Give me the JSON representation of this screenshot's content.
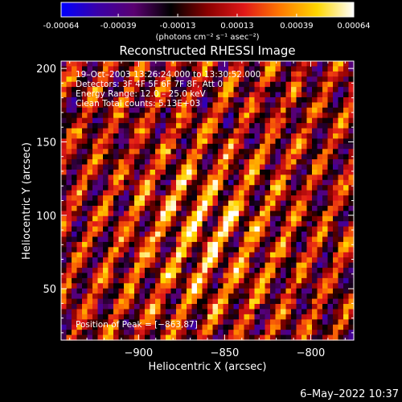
{
  "colorbar": {
    "tick_labels": [
      "-0.00064",
      "-0.00039",
      "-0.00013",
      "0.00013",
      "0.00039",
      "0.00064"
    ],
    "tick_values": [
      -0.00064,
      -0.00039,
      -0.00013,
      0.00013,
      0.00039,
      0.00064
    ],
    "range": [
      -0.00064,
      0.00064
    ],
    "unit_label": "(photons cm⁻² s⁻¹ asec⁻²)",
    "colormap": [
      "#0000ff",
      "#3a00a8",
      "#5a0070",
      "#000000",
      "#8a0000",
      "#e01818",
      "#ff7a00",
      "#ffd700",
      "#ffffff"
    ]
  },
  "chart_data": {
    "type": "heatmap",
    "title": "Reconstructed RHESSI Image",
    "xlabel": "Heliocentric X (arcsec)",
    "ylabel": "Heliocentric Y (arcsec)",
    "xlim": [
      -945,
      -775
    ],
    "ylim": [
      15,
      205
    ],
    "x_ticks": [
      -900,
      -850,
      -800
    ],
    "x_tick_labels": [
      "−900",
      "−850",
      "−800"
    ],
    "y_ticks": [
      50,
      100,
      150,
      200
    ],
    "y_tick_labels": [
      "50",
      "100",
      "150",
      "200"
    ],
    "info_lines": [
      "19–Oct–2003 13:26:24.000 to 13:30:52.000",
      "Detectors: 3F 4F 5F 6F 7F 8F, Att 0",
      "Energy Range: 12.0 – 25.0 keV",
      "Clean     Total counts: 5.13E+03"
    ],
    "peak_label": "Position of Peak = [−863,87]",
    "peak": [
      -863,
      87
    ],
    "grid": false,
    "pattern": "diagonal fringe stripes, bright band near peak"
  },
  "footer": {
    "date": "6–May–2022 10:37"
  }
}
